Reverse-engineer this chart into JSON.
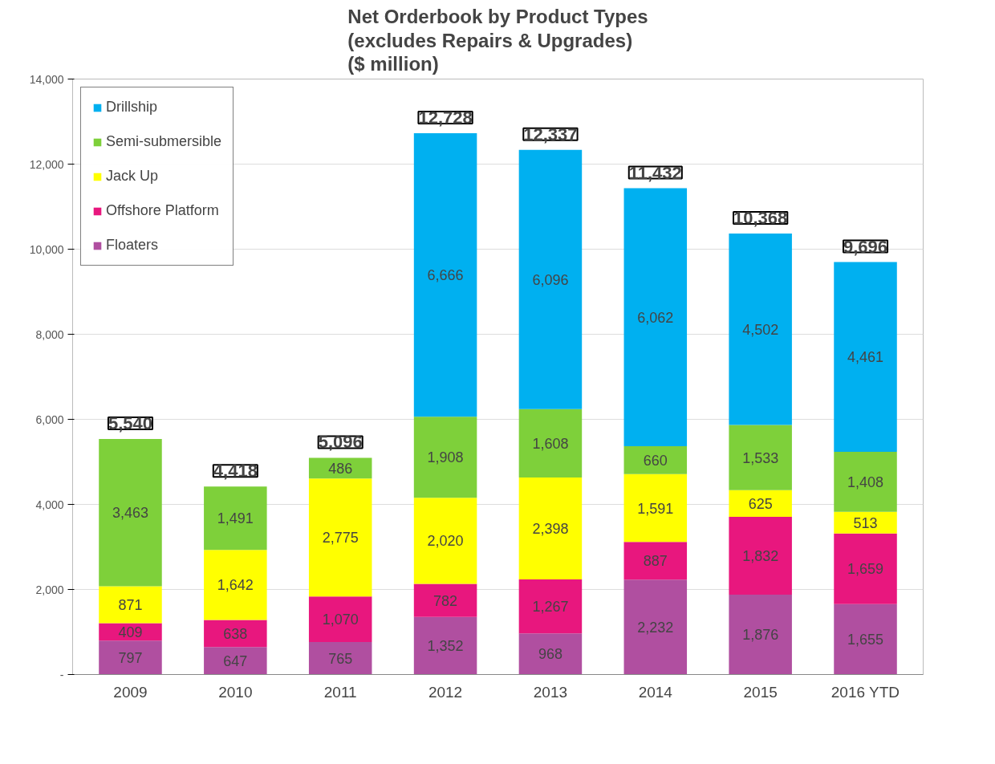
{
  "chart_data": {
    "type": "bar",
    "title": "Net Orderbook by Product Types\n(excludes Repairs & Upgrades)\n($ million)",
    "categories": [
      "2009",
      "2010",
      "2011",
      "2012",
      "2013",
      "2014",
      "2015",
      "2016 YTD"
    ],
    "stacked": true,
    "series": [
      {
        "name": "Floaters",
        "color": "#b04fa0",
        "values": [
          797,
          647,
          765,
          1352,
          968,
          2232,
          1876,
          1655
        ],
        "value_labels": [
          "797",
          "647",
          "765",
          "1,352",
          "968",
          "2,232",
          "1,876",
          "1,655"
        ]
      },
      {
        "name": "Offshore Platform",
        "color": "#e8177e",
        "values": [
          409,
          638,
          1070,
          782,
          1267,
          887,
          1832,
          1659
        ],
        "value_labels": [
          "409",
          "638",
          "1,070",
          "782",
          "1,267",
          "887",
          "1,832",
          "1,659"
        ]
      },
      {
        "name": "Jack Up",
        "color": "#ffff00",
        "values": [
          871,
          1642,
          2775,
          2020,
          2398,
          1591,
          625,
          513
        ],
        "value_labels": [
          "871",
          "1,642",
          "2,775",
          "2,020",
          "2,398",
          "1,591",
          "625",
          "513"
        ]
      },
      {
        "name": "Semi-submersible",
        "color": "#7ed03a",
        "values": [
          3463,
          1491,
          486,
          1908,
          1608,
          660,
          1533,
          1408
        ],
        "value_labels": [
          "3,463",
          "1,491",
          "486",
          "1,908",
          "1,608",
          "660",
          "1,533",
          "1,408"
        ]
      },
      {
        "name": "Drillship",
        "color": "#00b0f0",
        "values": [
          null,
          null,
          null,
          6666,
          6096,
          6062,
          4502,
          4461
        ],
        "value_labels": [
          null,
          null,
          null,
          "6,666",
          "6,096",
          "6,062",
          "4,502",
          "4,461"
        ]
      }
    ],
    "totals": [
      "5,540",
      "4,418",
      "5,096",
      "12,728",
      "12,337",
      "11,432",
      "10,368",
      "9,696"
    ],
    "ylim": [
      0,
      14000
    ],
    "yticks": [
      {
        "value": 0,
        "label": "-"
      },
      {
        "value": 2000,
        "label": "2,000"
      },
      {
        "value": 4000,
        "label": "4,000"
      },
      {
        "value": 6000,
        "label": "6,000"
      },
      {
        "value": 8000,
        "label": "8,000"
      },
      {
        "value": 10000,
        "label": "10,000"
      },
      {
        "value": 12000,
        "label": "12,000"
      },
      {
        "value": 14000,
        "label": "14,000"
      }
    ],
    "grid": "y",
    "legend": "top left"
  }
}
